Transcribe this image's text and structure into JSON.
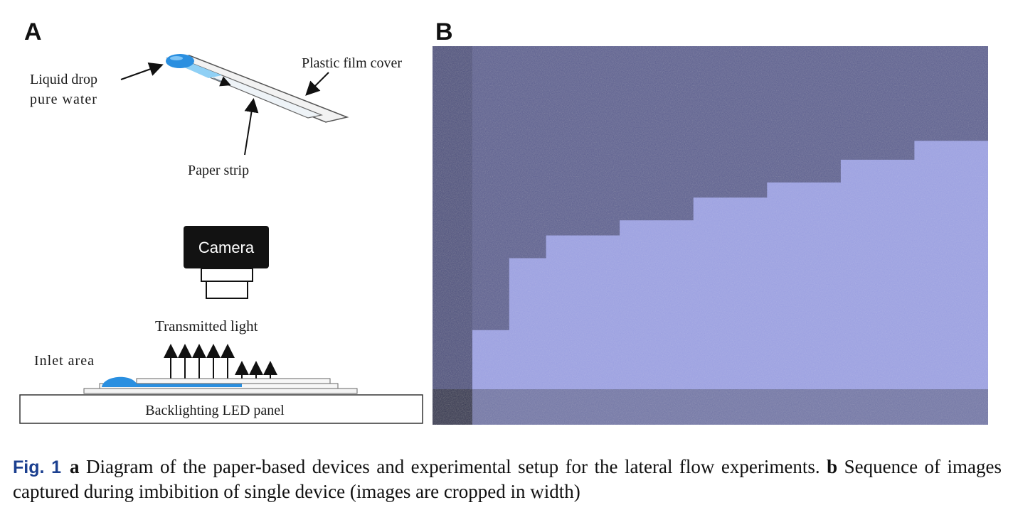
{
  "panels": {
    "a_label": "A",
    "b_label": "B"
  },
  "diagram_top": {
    "liquid_drop": "Liquid drop",
    "pure_water": "pure water",
    "plastic_film": "Plastic film cover",
    "paper_strip": "Paper strip"
  },
  "diagram_setup": {
    "camera": "Camera",
    "transmitted_light": "Transmitted light",
    "inlet_area": "Inlet area",
    "led_panel": "Backlighting LED panel"
  },
  "caption": {
    "fig_label": "Fig. 1",
    "a_tag": "a",
    "a_text": "Diagram of the paper-based devices and experimental setup for the lateral flow experiments.",
    "b_tag": "b",
    "b_text": "Sequence of images captured during imbibition of single device (images are cropped in width)"
  },
  "colors": {
    "water_blue": "#2a8fe0",
    "strip_blue": "#8fd0f5",
    "dry_paper": "#5b5e8f",
    "wet_paper": "#9a9fe0",
    "caption_fig": "#1b3f8f"
  },
  "imbibition_sequence": {
    "wet_front_fraction": [
      0.75,
      0.56,
      0.5,
      0.5,
      0.46,
      0.46,
      0.4,
      0.4,
      0.36,
      0.36,
      0.3,
      0.3,
      0.25,
      0.25
    ]
  }
}
